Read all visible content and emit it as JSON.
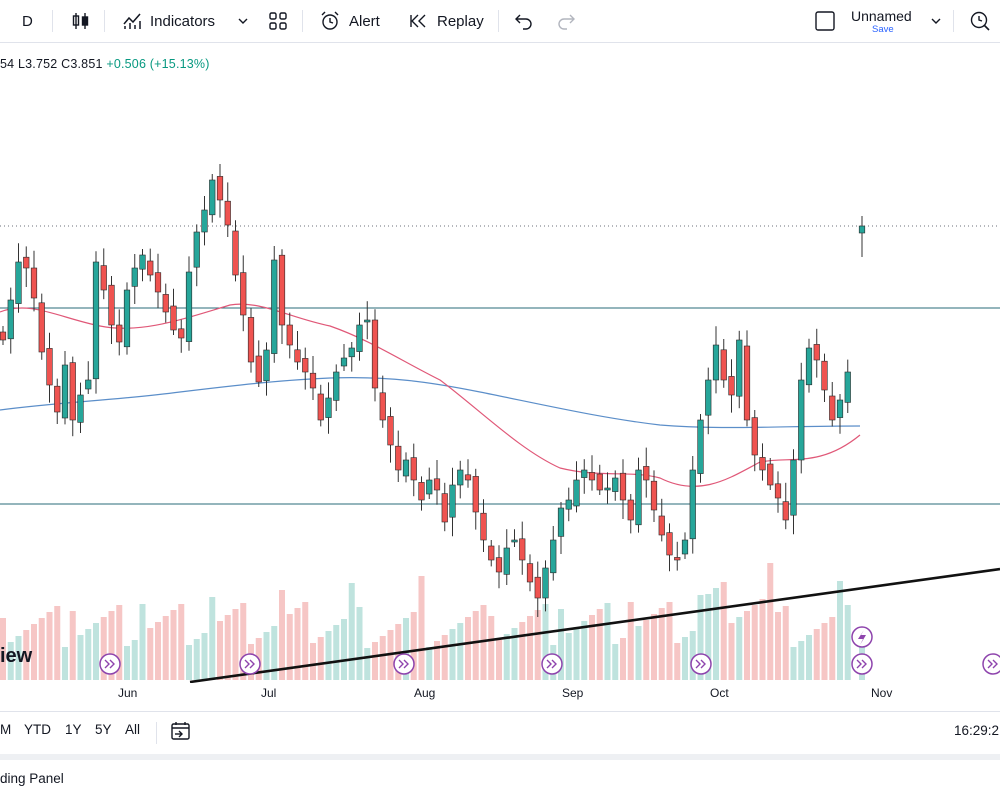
{
  "toolbar": {
    "interval": "D",
    "indicators_label": "Indicators",
    "alert_label": "Alert",
    "replay_label": "Replay",
    "layout_name": "Unnamed",
    "save_label": "Save"
  },
  "legend": {
    "open_partial": "54",
    "low": "L3.752",
    "close": "C3.851",
    "change": "+0.506 (+15.13%)"
  },
  "watermark": "iew",
  "x_axis": [
    "Jun",
    "Jul",
    "Aug",
    "Sep",
    "Oct",
    "Nov"
  ],
  "range_buttons": [
    "M",
    "YTD",
    "1Y",
    "5Y",
    "All"
  ],
  "clock": "16:29:2",
  "panel_label": "ding Panel",
  "colors": {
    "up": "#26a69a",
    "down": "#ef5350",
    "ma_short": "#e05878",
    "ma_long": "#5b8ec9",
    "hline": "#2a6b7a"
  },
  "chart_data": {
    "type": "candlestick",
    "x_range_labels": [
      "Jun",
      "Jul",
      "Aug",
      "Sep",
      "Oct",
      "Nov"
    ],
    "last_close": 3.851,
    "last_change": 0.506,
    "last_change_pct": 15.13,
    "horizontal_levels": 2,
    "trendlines": 1,
    "moving_averages": 2,
    "volume_shown": true,
    "grid": false
  }
}
